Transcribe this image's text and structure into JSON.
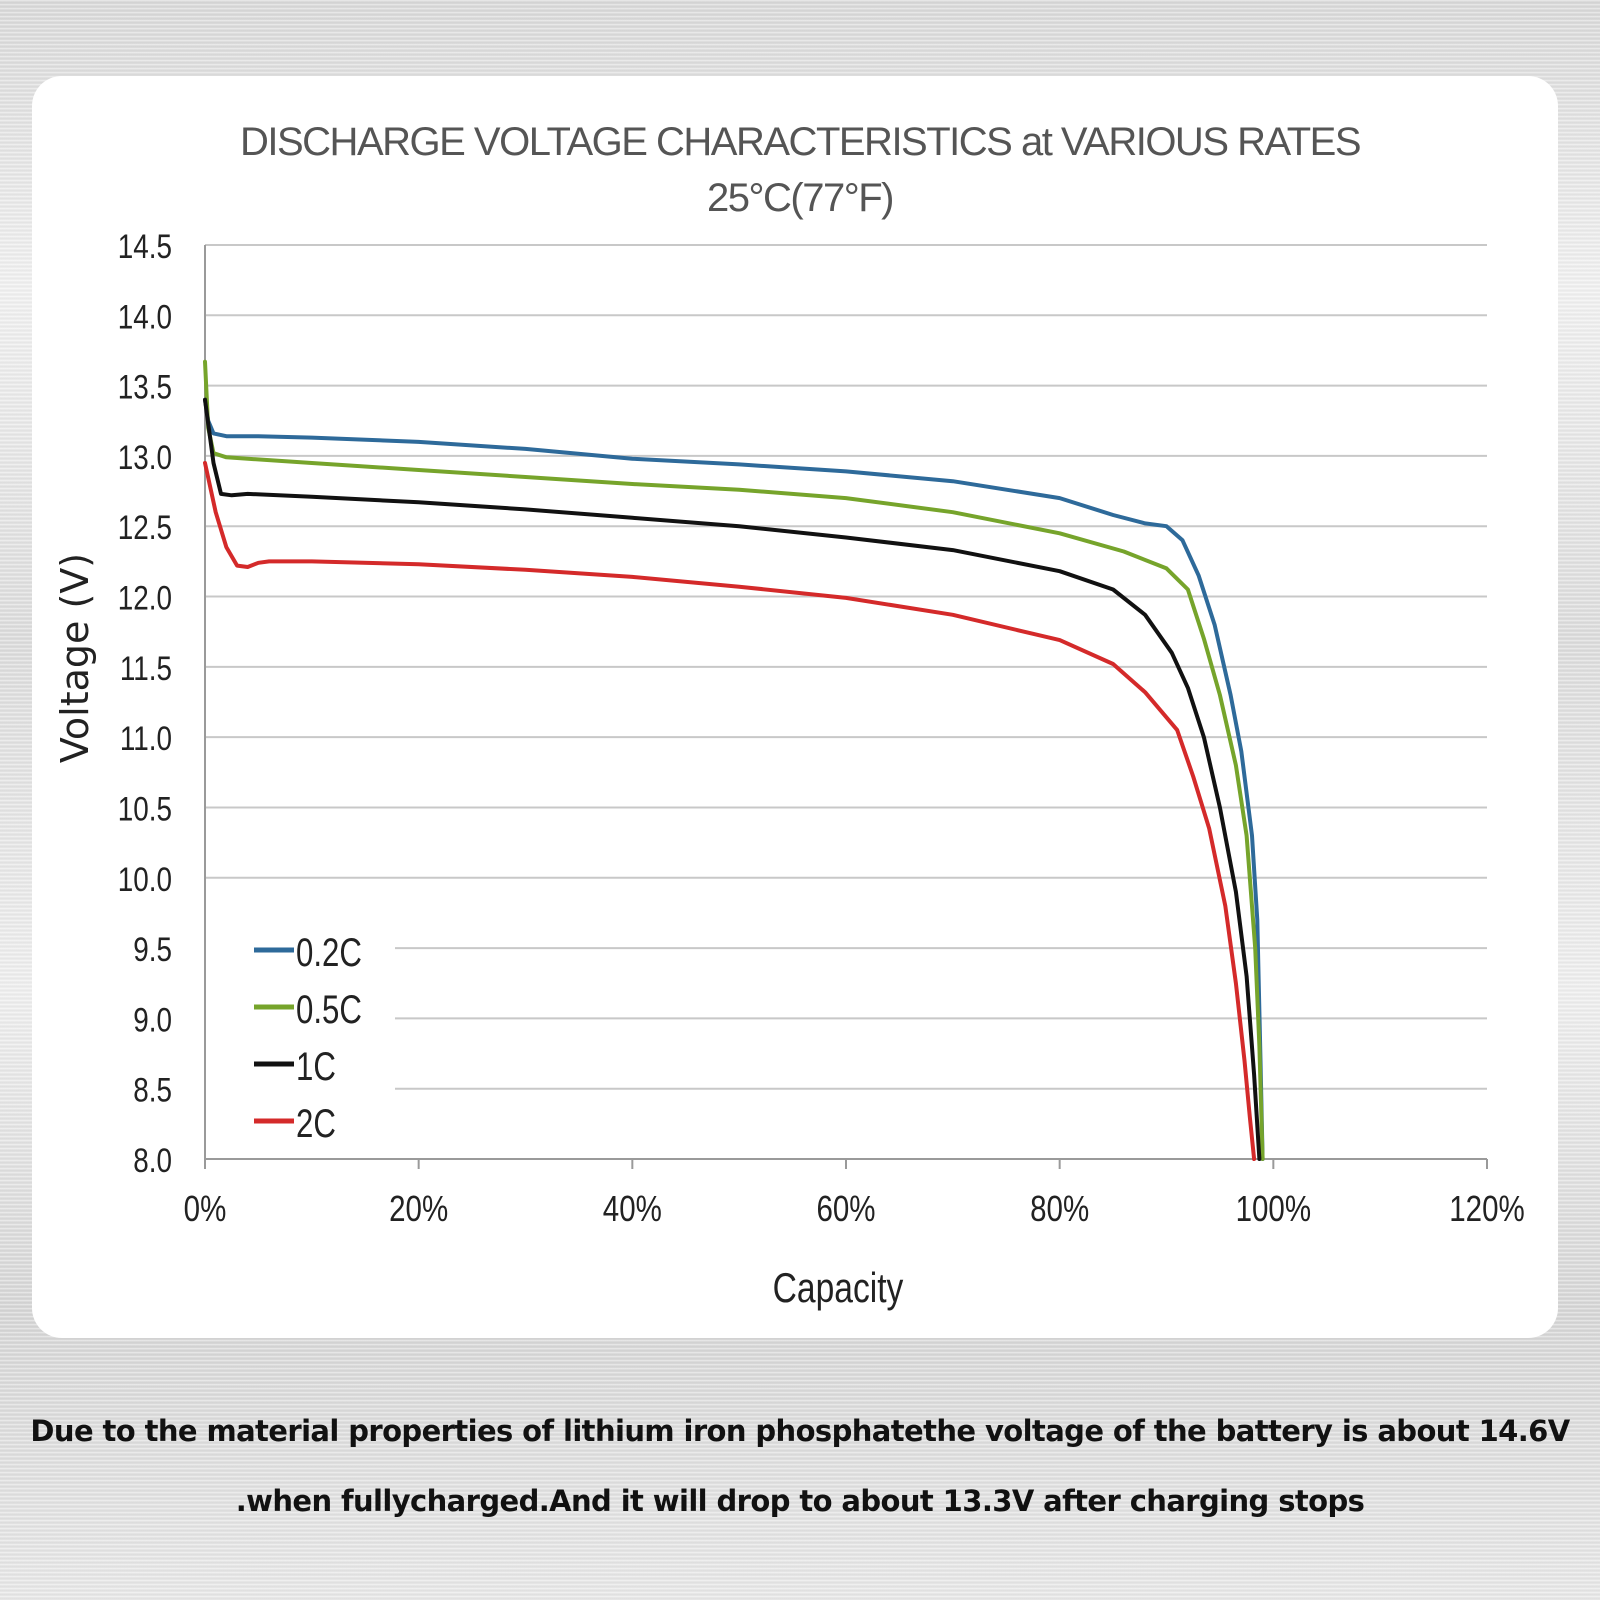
{
  "chart_data": {
    "type": "line",
    "title": "DISCHARGE VOLTAGE CHARACTERISTICS at VARIOUS RATES",
    "subtitle": "25°C(77°F)",
    "xlabel": "Capacity",
    "ylabel": "Voltage (V)",
    "xlim": [
      0,
      120
    ],
    "ylim": [
      8.0,
      14.5
    ],
    "x_ticks": [
      "0%",
      "20%",
      "40%",
      "60%",
      "80%",
      "100%",
      "120%"
    ],
    "y_ticks": [
      "14.5",
      "14.0",
      "13.5",
      "13.0",
      "12.5",
      "12.0",
      "11.5",
      "11.0",
      "10.5",
      "10.0",
      "9.5",
      "9.0",
      "8.5",
      "8.0"
    ],
    "grid": true,
    "legend": "bottom-left",
    "series": [
      {
        "name": "0.2C",
        "color": "#2e6a9a",
        "x": [
          0,
          0.3,
          0.8,
          2,
          5,
          10,
          20,
          30,
          40,
          50,
          60,
          70,
          80,
          85,
          88,
          90,
          91.5,
          93,
          94.5,
          96,
          97,
          98,
          98.5,
          98.8,
          99
        ],
        "y": [
          13.4,
          13.25,
          13.16,
          13.14,
          13.14,
          13.13,
          13.1,
          13.05,
          12.98,
          12.94,
          12.89,
          12.82,
          12.7,
          12.58,
          12.52,
          12.5,
          12.4,
          12.15,
          11.8,
          11.3,
          10.9,
          10.3,
          9.7,
          8.7,
          8.0
        ]
      },
      {
        "name": "0.5C",
        "color": "#76a42b",
        "x": [
          0,
          0.3,
          0.8,
          2,
          10,
          20,
          30,
          40,
          50,
          60,
          70,
          80,
          86,
          90,
          92,
          93.5,
          95,
          96.5,
          97.5,
          98.3,
          98.7,
          99
        ],
        "y": [
          13.67,
          13.2,
          13.02,
          12.99,
          12.95,
          12.9,
          12.85,
          12.8,
          12.76,
          12.7,
          12.6,
          12.45,
          12.32,
          12.2,
          12.05,
          11.7,
          11.3,
          10.8,
          10.3,
          9.5,
          8.8,
          8.0
        ]
      },
      {
        "name": "1C",
        "color": "#111111",
        "x": [
          0,
          0.8,
          1.5,
          2.5,
          4,
          10,
          20,
          30,
          40,
          50,
          60,
          70,
          80,
          85,
          88,
          90.5,
          92,
          93.5,
          95,
          96.5,
          97.5,
          98.2,
          98.7
        ],
        "y": [
          13.4,
          12.95,
          12.73,
          12.72,
          12.73,
          12.71,
          12.67,
          12.62,
          12.56,
          12.5,
          12.42,
          12.33,
          12.18,
          12.05,
          11.87,
          11.6,
          11.35,
          11.0,
          10.5,
          9.9,
          9.3,
          8.6,
          8.0
        ]
      },
      {
        "name": "2C",
        "color": "#d42a2a",
        "x": [
          0,
          1,
          2,
          3,
          4,
          5,
          6,
          10,
          20,
          30,
          40,
          50,
          60,
          70,
          80,
          85,
          88,
          91,
          92.5,
          94,
          95.5,
          96.5,
          97.3,
          97.8,
          98.2
        ],
        "y": [
          12.95,
          12.6,
          12.35,
          12.22,
          12.21,
          12.24,
          12.25,
          12.25,
          12.23,
          12.19,
          12.14,
          12.07,
          11.99,
          11.87,
          11.69,
          11.52,
          11.32,
          11.05,
          10.72,
          10.35,
          9.8,
          9.25,
          8.7,
          8.3,
          8.0
        ]
      }
    ]
  },
  "caption": {
    "line1": "Due to the material properties of lithium iron phosphatethe voltage of the battery is about 14.6V",
    "line2": ".when fullycharged.And it will drop to about 13.3V after charging stops"
  }
}
